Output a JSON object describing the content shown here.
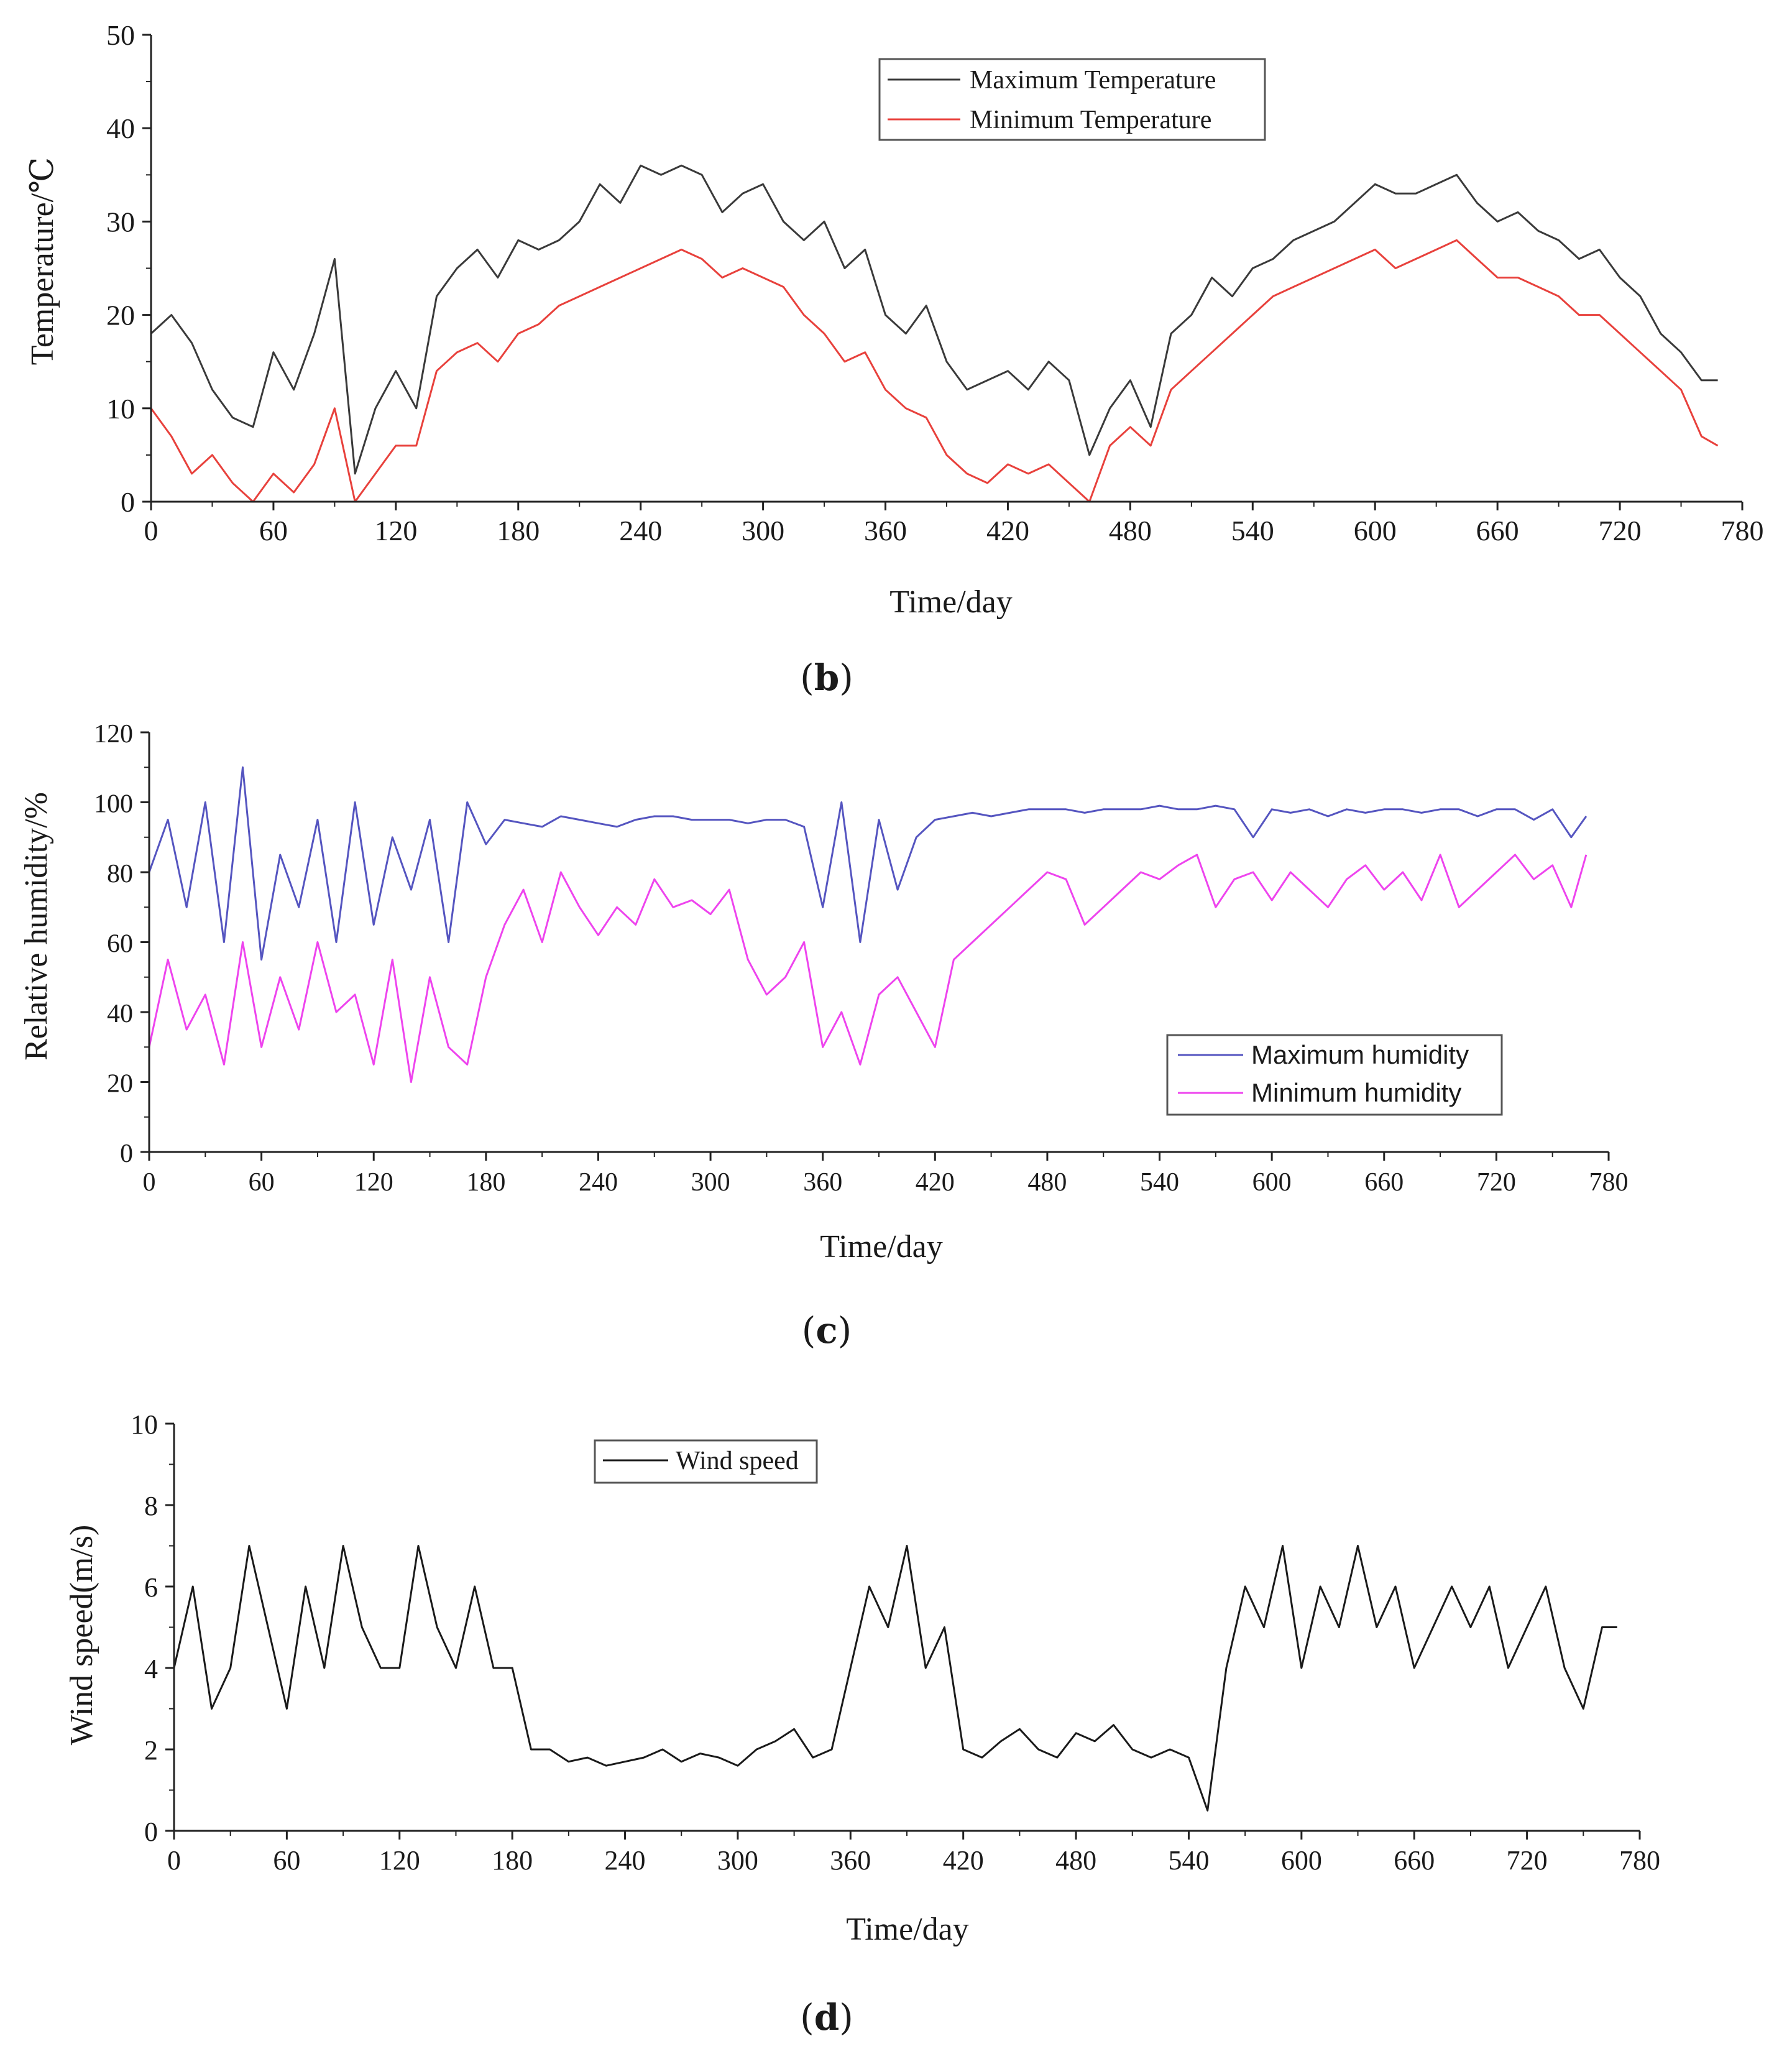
{
  "chart_data": [
    {
      "type": "line",
      "panel_label": "(b)",
      "panel_letter": "b",
      "xlabel": "Time/day",
      "ylabel": "Temperature/℃",
      "xlim": [
        0,
        780
      ],
      "ylim": [
        0,
        50
      ],
      "xticks": [
        0,
        60,
        120,
        180,
        240,
        300,
        360,
        420,
        480,
        540,
        600,
        660,
        720,
        780
      ],
      "yticks": [
        0,
        10,
        20,
        30,
        40,
        50
      ],
      "legend_position": "top-right",
      "color_max": "#3a3a3a",
      "color_min": "#e8413c",
      "series": [
        {
          "name": "Maximum Temperature",
          "color": "#3a3a3a",
          "x": [
            0,
            10,
            20,
            30,
            40,
            50,
            60,
            70,
            80,
            90,
            100,
            110,
            120,
            130,
            140,
            150,
            160,
            170,
            180,
            190,
            200,
            210,
            220,
            230,
            240,
            250,
            260,
            270,
            280,
            290,
            300,
            310,
            320,
            330,
            340,
            350,
            360,
            370,
            380,
            390,
            400,
            410,
            420,
            430,
            440,
            450,
            460,
            470,
            480,
            490,
            500,
            510,
            520,
            530,
            540,
            550,
            560,
            570,
            580,
            590,
            600,
            610,
            620,
            630,
            640,
            650,
            660,
            670,
            680,
            690,
            700,
            710,
            720,
            730,
            740,
            750,
            760,
            768
          ],
          "values": [
            18,
            20,
            17,
            12,
            9,
            8,
            16,
            12,
            18,
            26,
            3,
            10,
            14,
            10,
            22,
            25,
            27,
            24,
            28,
            27,
            28,
            30,
            34,
            32,
            36,
            35,
            36,
            35,
            31,
            33,
            34,
            30,
            28,
            30,
            25,
            27,
            20,
            18,
            21,
            15,
            12,
            13,
            14,
            12,
            15,
            13,
            5,
            10,
            13,
            8,
            18,
            20,
            24,
            22,
            25,
            26,
            28,
            29,
            30,
            32,
            34,
            33,
            33,
            34,
            35,
            32,
            30,
            31,
            29,
            28,
            26,
            27,
            24,
            22,
            18,
            16,
            13,
            13
          ]
        },
        {
          "name": "Minimum Temperature",
          "color": "#e8413c",
          "x": [
            0,
            10,
            20,
            30,
            40,
            50,
            60,
            70,
            80,
            90,
            100,
            110,
            120,
            130,
            140,
            150,
            160,
            170,
            180,
            190,
            200,
            210,
            220,
            230,
            240,
            250,
            260,
            270,
            280,
            290,
            300,
            310,
            320,
            330,
            340,
            350,
            360,
            370,
            380,
            390,
            400,
            410,
            420,
            430,
            440,
            450,
            460,
            470,
            480,
            490,
            500,
            510,
            520,
            530,
            540,
            550,
            560,
            570,
            580,
            590,
            600,
            610,
            620,
            630,
            640,
            650,
            660,
            670,
            680,
            690,
            700,
            710,
            720,
            730,
            740,
            750,
            760,
            768
          ],
          "values": [
            10,
            7,
            3,
            5,
            2,
            0,
            3,
            1,
            4,
            10,
            0,
            3,
            6,
            6,
            14,
            16,
            17,
            15,
            18,
            19,
            21,
            22,
            23,
            24,
            25,
            26,
            27,
            26,
            24,
            25,
            24,
            23,
            20,
            18,
            15,
            16,
            12,
            10,
            9,
            5,
            3,
            2,
            4,
            3,
            4,
            2,
            0,
            6,
            8,
            6,
            12,
            14,
            16,
            18,
            20,
            22,
            23,
            24,
            25,
            26,
            27,
            25,
            26,
            27,
            28,
            26,
            24,
            24,
            23,
            22,
            20,
            20,
            18,
            16,
            14,
            12,
            7,
            6
          ]
        }
      ]
    },
    {
      "type": "line",
      "panel_label": "(c)",
      "panel_letter": "c",
      "xlabel": "Time/day",
      "ylabel": "Relative humidity/%",
      "xlim": [
        0,
        780
      ],
      "ylim": [
        0,
        120
      ],
      "xticks": [
        0,
        60,
        120,
        180,
        240,
        300,
        360,
        420,
        480,
        540,
        600,
        660,
        720,
        780
      ],
      "yticks": [
        0,
        20,
        40,
        60,
        80,
        100,
        120
      ],
      "legend_position": "bottom-right",
      "color_max": "#5555c0",
      "color_min": "#ee44ee",
      "series": [
        {
          "name": "Maximum humidity",
          "color": "#5555c0",
          "x": [
            0,
            10,
            20,
            30,
            40,
            50,
            60,
            70,
            80,
            90,
            100,
            110,
            120,
            130,
            140,
            150,
            160,
            170,
            180,
            190,
            200,
            210,
            220,
            230,
            240,
            250,
            260,
            270,
            280,
            290,
            300,
            310,
            320,
            330,
            340,
            350,
            360,
            370,
            380,
            390,
            400,
            410,
            420,
            430,
            440,
            450,
            460,
            470,
            480,
            490,
            500,
            510,
            520,
            530,
            540,
            550,
            560,
            570,
            580,
            590,
            600,
            610,
            620,
            630,
            640,
            650,
            660,
            670,
            680,
            690,
            700,
            710,
            720,
            730,
            740,
            750,
            760,
            768
          ],
          "values": [
            80,
            95,
            70,
            100,
            60,
            110,
            55,
            85,
            70,
            95,
            60,
            100,
            65,
            90,
            75,
            95,
            60,
            100,
            88,
            95,
            94,
            93,
            96,
            95,
            94,
            93,
            95,
            96,
            96,
            95,
            95,
            95,
            94,
            95,
            95,
            93,
            70,
            100,
            60,
            95,
            75,
            90,
            95,
            96,
            97,
            96,
            97,
            98,
            98,
            98,
            97,
            98,
            98,
            98,
            99,
            98,
            98,
            99,
            98,
            90,
            98,
            97,
            98,
            96,
            98,
            97,
            98,
            98,
            97,
            98,
            98,
            96,
            98,
            98,
            95,
            98,
            90,
            96
          ]
        },
        {
          "name": "Minimum humidity",
          "color": "#ee44ee",
          "x": [
            0,
            10,
            20,
            30,
            40,
            50,
            60,
            70,
            80,
            90,
            100,
            110,
            120,
            130,
            140,
            150,
            160,
            170,
            180,
            190,
            200,
            210,
            220,
            230,
            240,
            250,
            260,
            270,
            280,
            290,
            300,
            310,
            320,
            330,
            340,
            350,
            360,
            370,
            380,
            390,
            400,
            410,
            420,
            430,
            440,
            450,
            460,
            470,
            480,
            490,
            500,
            510,
            520,
            530,
            540,
            550,
            560,
            570,
            580,
            590,
            600,
            610,
            620,
            630,
            640,
            650,
            660,
            670,
            680,
            690,
            700,
            710,
            720,
            730,
            740,
            750,
            760,
            768
          ],
          "values": [
            30,
            55,
            35,
            45,
            25,
            60,
            30,
            50,
            35,
            60,
            40,
            45,
            25,
            55,
            20,
            50,
            30,
            25,
            50,
            65,
            75,
            60,
            80,
            70,
            62,
            70,
            65,
            78,
            70,
            72,
            68,
            75,
            55,
            45,
            50,
            60,
            30,
            40,
            25,
            45,
            50,
            40,
            30,
            55,
            60,
            65,
            70,
            75,
            80,
            78,
            65,
            70,
            75,
            80,
            78,
            82,
            85,
            70,
            78,
            80,
            72,
            80,
            75,
            70,
            78,
            82,
            75,
            80,
            72,
            85,
            70,
            75,
            80,
            85,
            78,
            82,
            70,
            85
          ]
        }
      ]
    },
    {
      "type": "line",
      "panel_label": "(d)",
      "panel_letter": "d",
      "xlabel": "Time/day",
      "ylabel": "Wind speed(m/s)",
      "xlim": [
        0,
        780
      ],
      "ylim": [
        0,
        10
      ],
      "xticks": [
        0,
        60,
        120,
        180,
        240,
        300,
        360,
        420,
        480,
        540,
        600,
        660,
        720,
        780
      ],
      "yticks": [
        0,
        2,
        4,
        6,
        8,
        10
      ],
      "legend_position": "top-center",
      "color_wind": "#1a1a1a",
      "series": [
        {
          "name": "Wind speed",
          "color": "#1a1a1a",
          "x": [
            0,
            10,
            20,
            30,
            40,
            50,
            60,
            70,
            80,
            90,
            100,
            110,
            120,
            130,
            140,
            150,
            160,
            170,
            180,
            190,
            200,
            210,
            220,
            230,
            240,
            250,
            260,
            270,
            280,
            290,
            300,
            310,
            320,
            330,
            340,
            350,
            360,
            370,
            380,
            390,
            400,
            410,
            420,
            430,
            440,
            450,
            460,
            470,
            480,
            490,
            500,
            510,
            520,
            530,
            540,
            550,
            560,
            570,
            580,
            590,
            600,
            610,
            620,
            630,
            640,
            650,
            660,
            670,
            680,
            690,
            700,
            710,
            720,
            730,
            740,
            750,
            760,
            768
          ],
          "values": [
            4,
            6,
            3,
            4,
            7,
            5,
            3,
            6,
            4,
            7,
            5,
            4,
            4,
            7,
            5,
            4,
            6,
            4,
            4,
            2,
            2,
            1.7,
            1.8,
            1.6,
            1.7,
            1.8,
            2,
            1.7,
            1.9,
            1.8,
            1.6,
            2,
            2.2,
            2.5,
            1.8,
            2,
            4,
            6,
            5,
            7,
            4,
            5,
            2,
            1.8,
            2.2,
            2.5,
            2,
            1.8,
            2.4,
            2.2,
            2.6,
            2,
            1.8,
            2,
            1.8,
            0.5,
            4,
            6,
            5,
            7,
            4,
            6,
            5,
            7,
            5,
            6,
            4,
            5,
            6,
            5,
            6,
            4,
            5,
            6,
            4,
            3,
            5,
            5
          ]
        }
      ]
    }
  ]
}
